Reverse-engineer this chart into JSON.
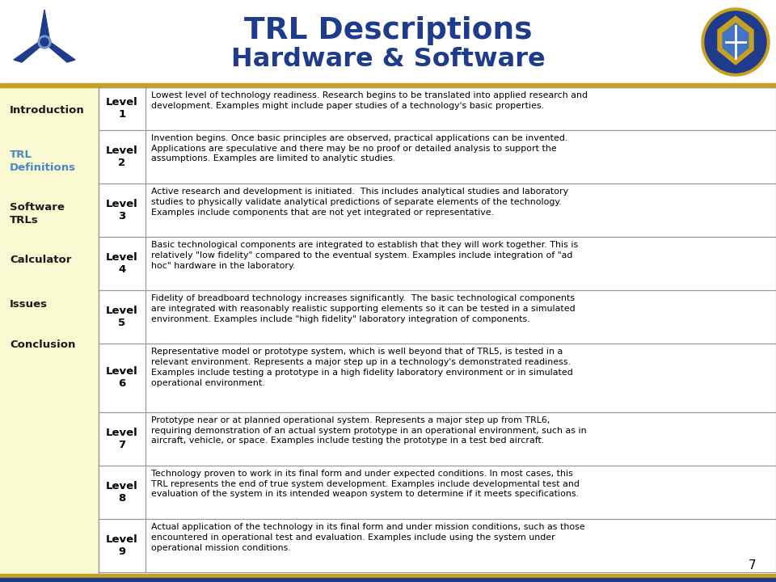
{
  "title_line1": "TRL Descriptions",
  "title_line2": "Hardware & Software",
  "title_color": "#1F3B8B",
  "levels": [
    "Level\n1",
    "Level\n2",
    "Level\n3",
    "Level\n4",
    "Level\n5",
    "Level\n6",
    "Level\n7",
    "Level\n8",
    "Level\n9"
  ],
  "descriptions": [
    "Lowest level of technology readiness. Research begins to be translated into applied research and\ndevelopment. Examples might include paper studies of a technology's basic properties.",
    "Invention begins. Once basic principles are observed, practical applications can be invented.\nApplications are speculative and there may be no proof or detailed analysis to support the\nassumptions. Examples are limited to analytic studies.",
    "Active research and development is initiated.  This includes analytical studies and laboratory\nstudies to physically validate analytical predictions of separate elements of the technology.\nExamples include components that are not yet integrated or representative.",
    "Basic technological components are integrated to establish that they will work together. This is\nrelatively \"low fidelity\" compared to the eventual system. Examples include integration of \"ad\nhoc\" hardware in the laboratory.",
    "Fidelity of breadboard technology increases significantly.  The basic technological components\nare integrated with reasonably realistic supporting elements so it can be tested in a simulated\nenvironment. Examples include \"high fidelity\" laboratory integration of components.",
    "Representative model or prototype system, which is well beyond that of TRL5, is tested in a\nrelevant environment. Represents a major step up in a technology's demonstrated readiness.\nExamples include testing a prototype in a high fidelity laboratory environment or in simulated\noperational environment.",
    "Prototype near or at planned operational system. Represents a major step up from TRL6,\nrequiring demonstration of an actual system prototype in an operational environment, such as in\naircraft, vehicle, or space. Examples include testing the prototype in a test bed aircraft.",
    "Technology proven to work in its final form and under expected conditions. In most cases, this\nTRL represents the end of true system development. Examples include developmental test and\nevaluation of the system in its intended weapon system to determine if it meets specifications.",
    "Actual application of the technology in its final form and under mission conditions, such as those\nencountered in operational test and evaluation. Examples include using the system under\noperational mission conditions."
  ],
  "nav_items": [
    "Introduction",
    "TRL\nDefinitions",
    "Software\nTRLs",
    "Calculator",
    "Issues",
    "Conclusion"
  ],
  "nav_active_idx": 1,
  "nav_active_color": "#4B86C8",
  "nav_inactive_color": "#1A1A1A",
  "sidebar_bg": "#FAFAD2",
  "table_bg": "#FFFFFF",
  "border_color": "#999999",
  "gold_color": "#C8A020",
  "dark_blue": "#1F3B8B",
  "page_number": "7",
  "row_height_weights": [
    2.0,
    2.5,
    2.5,
    2.5,
    2.5,
    3.2,
    2.5,
    2.5,
    2.5
  ]
}
